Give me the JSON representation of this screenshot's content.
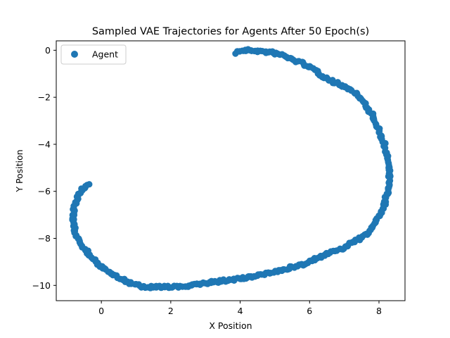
{
  "chart_data": {
    "type": "scatter",
    "title": "Sampled VAE Trajectories for Agents After 50 Epoch(s)",
    "xlabel": "X Position",
    "ylabel": "Y Position",
    "xlim": [
      -1.3,
      8.75
    ],
    "ylim": [
      -10.65,
      0.4
    ],
    "xticks": [
      0,
      2,
      4,
      6,
      8
    ],
    "yticks": [
      0,
      -2,
      -4,
      -6,
      -8,
      -10
    ],
    "xtick_labels": [
      "0",
      "2",
      "4",
      "6",
      "8"
    ],
    "ytick_labels": [
      "0",
      "−2",
      "−4",
      "−6",
      "−8",
      "−10"
    ],
    "grid": false,
    "legend_position": "upper-left",
    "series": [
      {
        "name": "Agent",
        "color": "#1f77b4",
        "marker": "circle",
        "path_points": [
          [
            3.9,
            -0.1
          ],
          [
            4.0,
            -0.02
          ],
          [
            4.3,
            0.0
          ],
          [
            4.6,
            -0.05
          ],
          [
            4.9,
            -0.1
          ],
          [
            5.2,
            -0.2
          ],
          [
            5.5,
            -0.4
          ],
          [
            5.8,
            -0.55
          ],
          [
            6.1,
            -0.8
          ],
          [
            6.4,
            -1.1
          ],
          [
            6.7,
            -1.35
          ],
          [
            7.0,
            -1.55
          ],
          [
            7.3,
            -1.8
          ],
          [
            7.55,
            -2.2
          ],
          [
            7.8,
            -2.75
          ],
          [
            8.0,
            -3.4
          ],
          [
            8.15,
            -4.0
          ],
          [
            8.25,
            -4.6
          ],
          [
            8.3,
            -5.2
          ],
          [
            8.27,
            -5.9
          ],
          [
            8.15,
            -6.6
          ],
          [
            7.95,
            -7.2
          ],
          [
            7.65,
            -7.8
          ],
          [
            7.3,
            -8.15
          ],
          [
            6.9,
            -8.45
          ],
          [
            6.3,
            -8.8
          ],
          [
            5.8,
            -9.1
          ],
          [
            5.2,
            -9.35
          ],
          [
            4.5,
            -9.6
          ],
          [
            3.8,
            -9.75
          ],
          [
            3.0,
            -9.9
          ],
          [
            2.3,
            -10.05
          ],
          [
            1.7,
            -10.08
          ],
          [
            1.2,
            -10.05
          ],
          [
            0.8,
            -9.9
          ],
          [
            0.4,
            -9.6
          ],
          [
            0.0,
            -9.2
          ],
          [
            -0.3,
            -8.8
          ],
          [
            -0.55,
            -8.3
          ],
          [
            -0.75,
            -7.8
          ],
          [
            -0.8,
            -7.3
          ],
          [
            -0.8,
            -6.8
          ],
          [
            -0.7,
            -6.3
          ],
          [
            -0.6,
            -6.0
          ],
          [
            -0.45,
            -5.75
          ],
          [
            -0.35,
            -5.7
          ]
        ]
      }
    ]
  }
}
